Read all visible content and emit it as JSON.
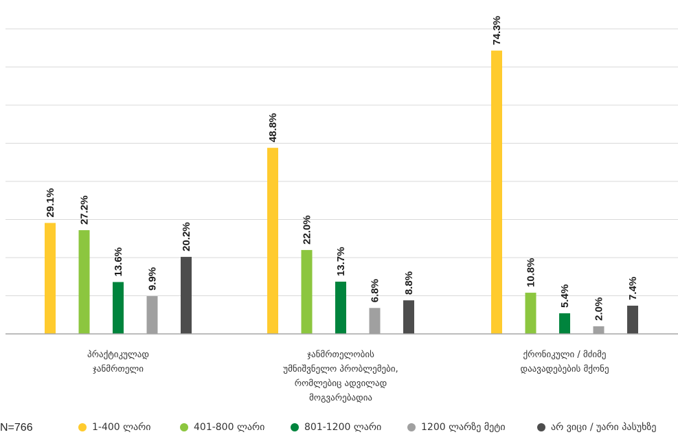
{
  "chart_data": {
    "type": "bar",
    "categories": [
      [
        "პრაქტიკულად",
        "ჯანმრთელი"
      ],
      [
        "ჯანმრთელობის",
        "უმნიშვნელო პრობლემები,",
        "რომლებიც ადვილად",
        "მოგვარებადია"
      ],
      [
        "ქრონიკული / მძიმე",
        "დაავადებების მქონე"
      ]
    ],
    "series": [
      {
        "name": "1-400 ლარი",
        "color": "#FFCB2E",
        "values": [
          29.1,
          48.8,
          74.3
        ],
        "labels": [
          "29.1%",
          "48.8%",
          "74.3%"
        ]
      },
      {
        "name": "401-800 ლარი",
        "color": "#8CC63F",
        "values": [
          27.2,
          22.0,
          10.8
        ],
        "labels": [
          "27.2%",
          "22.0%",
          "10.8%"
        ]
      },
      {
        "name": "801-1200 ლარი",
        "color": "#00843D",
        "values": [
          13.6,
          13.7,
          5.4
        ],
        "labels": [
          "13.6%",
          "13.7%",
          "5.4%"
        ]
      },
      {
        "name": "1200 ლარზე მეტი",
        "color": "#A0A0A0",
        "values": [
          9.9,
          6.8,
          2.0
        ],
        "labels": [
          "9.9%",
          "6.8%",
          "2.0%"
        ]
      },
      {
        "name": "არ ვიცი / უარი პასუხზე",
        "color": "#4D4D4D",
        "values": [
          20.2,
          8.8,
          7.4
        ],
        "labels": [
          "20.2%",
          "8.8%",
          "7.4%"
        ]
      }
    ],
    "ylim": [
      0,
      80
    ],
    "grid": true,
    "legend": "bottom",
    "note": "N=766"
  }
}
